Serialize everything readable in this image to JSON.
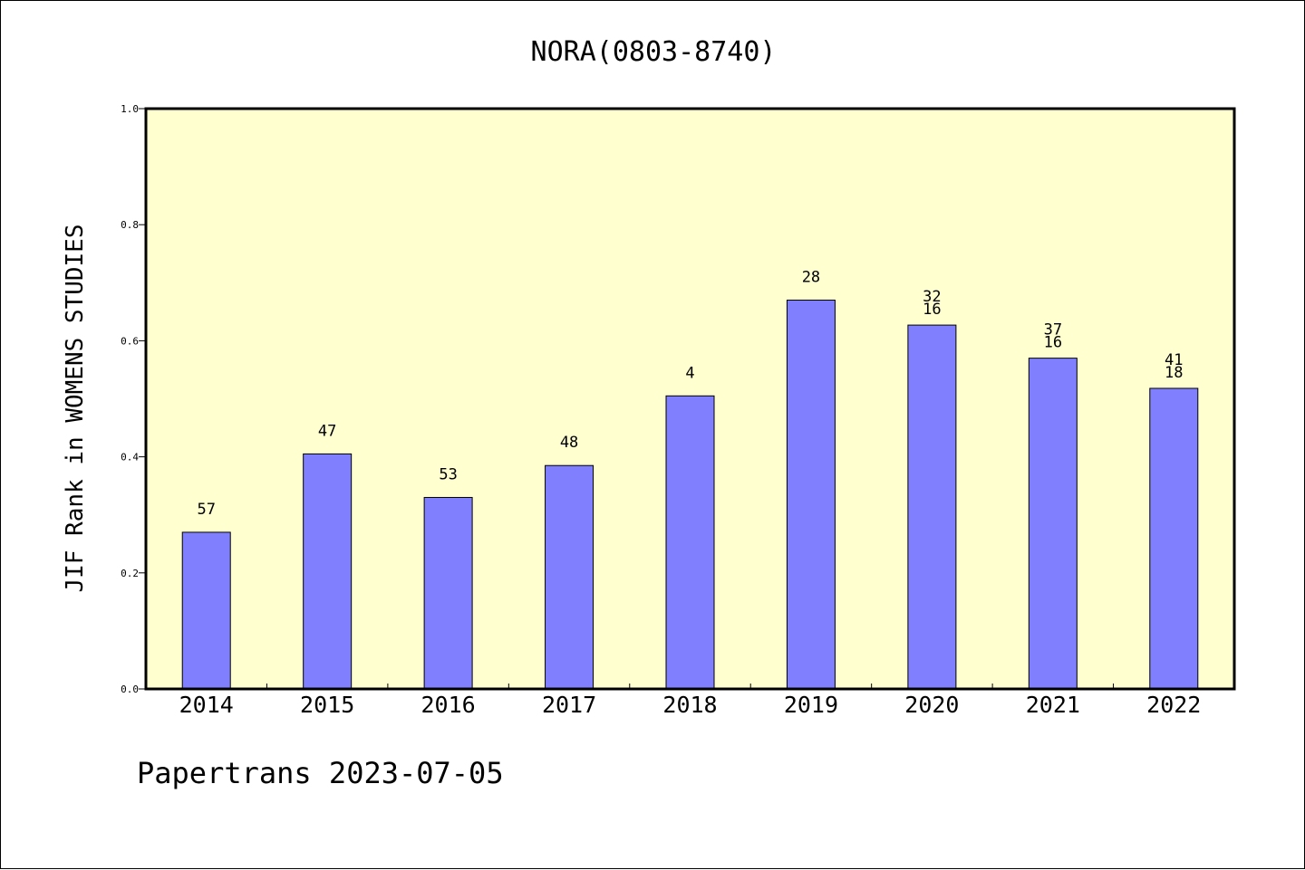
{
  "chart_data": {
    "type": "bar",
    "title": "NORA(0803-8740)",
    "ylabel": "JIF Rank in WOMENS STUDIES",
    "xlabel": "",
    "categories": [
      "2014",
      "2015",
      "2016",
      "2017",
      "2018",
      "2019",
      "2020",
      "2021",
      "2022"
    ],
    "values": [
      0.27,
      0.405,
      0.33,
      0.385,
      0.505,
      0.67,
      0.627,
      0.57,
      0.518
    ],
    "bar_labels": [
      [
        "57"
      ],
      [
        "47"
      ],
      [
        "53"
      ],
      [
        "48"
      ],
      [
        "4"
      ],
      [
        "28"
      ],
      [
        "32",
        "16"
      ],
      [
        "37",
        "16"
      ],
      [
        "41",
        "18"
      ]
    ],
    "ylim": [
      0,
      1.0
    ],
    "yticks": [
      "0.0",
      "0.2",
      "0.4",
      "0.6",
      "0.8",
      "1.0"
    ],
    "grid": false,
    "footer": "Papertrans 2023-07-05",
    "colors": {
      "plot_background": "#ffffd0",
      "bar_fill": "#8080ff",
      "bar_stroke": "#000000"
    }
  }
}
